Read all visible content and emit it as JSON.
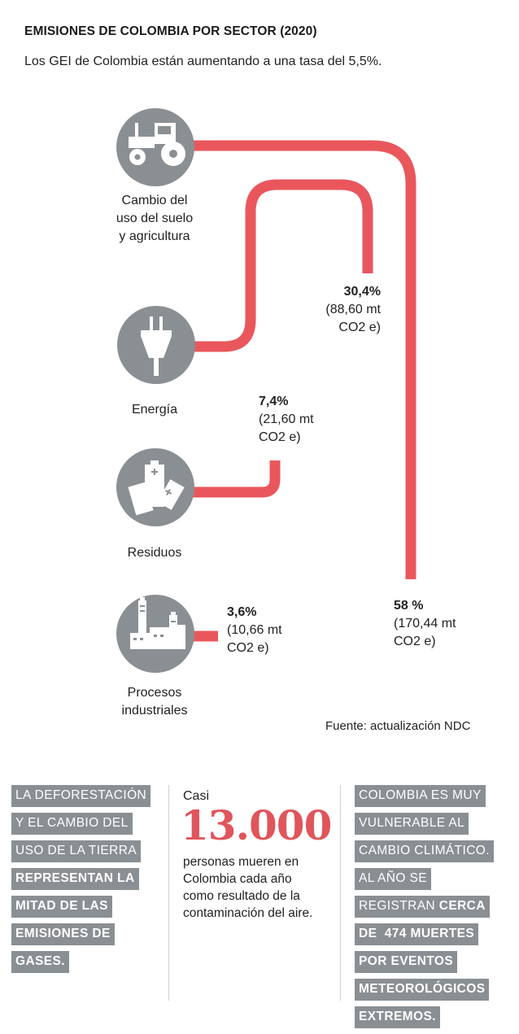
{
  "header": {
    "title": "EMISIONES DE COLOMBIA POR SECTOR (2020)",
    "subtitle": "Los GEI de Colombia están aumentando a una tasa del 5,5%."
  },
  "chart_data": {
    "type": "flow",
    "title": "EMISIONES DE COLOMBIA POR SECTOR (2020)",
    "categories": [
      "Cambio del uso del suelo y agricultura",
      "Energía",
      "Residuos",
      "Procesos industriales"
    ],
    "values": [
      58,
      30.4,
      7.4,
      3.6
    ],
    "unit": "%",
    "absolute_values": [
      170.44,
      88.6,
      21.6,
      10.66
    ],
    "absolute_unit": "mt CO2 e",
    "sectors": [
      {
        "id": "agricultura",
        "label_lines": [
          "Cambio del",
          "uso del suelo",
          "y agricultura"
        ],
        "icon": "tractor-icon",
        "pct_label": "58 %",
        "amount_lines": [
          "(170,44 mt",
          "CO2 e)"
        ]
      },
      {
        "id": "energia",
        "label_lines": [
          "Energía"
        ],
        "icon": "plug-icon",
        "pct_label": "30,4%",
        "amount_lines": [
          "(88,60 mt",
          "CO2 e)"
        ]
      },
      {
        "id": "residuos",
        "label_lines": [
          "Residuos"
        ],
        "icon": "battery-icon",
        "pct_label": "7,4%",
        "amount_lines": [
          "(21,60 mt",
          "CO2 e)"
        ]
      },
      {
        "id": "industria",
        "label_lines": [
          "Procesos",
          "industriales"
        ],
        "icon": "factory-icon",
        "pct_label": "3,6%",
        "amount_lines": [
          "(10,66 mt",
          "CO2 e)"
        ]
      }
    ],
    "colors": {
      "line": "#e9575d",
      "icon_circle": "#8a8f93",
      "icon_glyph": "#ffffff"
    }
  },
  "source": "Fuente: actualización NDC",
  "facts": {
    "left": {
      "regular": [
        "LA DEFORESTACIÓN",
        "Y EL CAMBIO DEL",
        "USO DE LA TIERRA"
      ],
      "bold": [
        "REPRESENTAN LA",
        "MITAD DE LAS",
        "EMISIONES DE",
        "GASES."
      ]
    },
    "middle": {
      "prefix": "Casi",
      "number": "13.000",
      "desc": "personas mueren en Colombia cada año como resultado de la contaminación del aire.",
      "number_color": "#e0555b"
    },
    "right": {
      "lines": [
        {
          "regular": "COLOMBIA ES MUY",
          "bold": ""
        },
        {
          "regular": "VULNERABLE AL",
          "bold": ""
        },
        {
          "regular": "CAMBIO CLIMÁTICO.",
          "bold": ""
        },
        {
          "regular": "AL AÑO SE",
          "bold": ""
        },
        {
          "regular": "REGISTRAN ",
          "bold": "CERCA"
        },
        {
          "regular": "",
          "bold": "DE  474 MUERTES"
        },
        {
          "regular": "",
          "bold": "POR EVENTOS"
        },
        {
          "regular": "",
          "bold": "METEOROLÓGICOS"
        },
        {
          "regular": "",
          "bold": "EXTREMOS."
        }
      ]
    },
    "tag_color": "#8a8f93"
  }
}
